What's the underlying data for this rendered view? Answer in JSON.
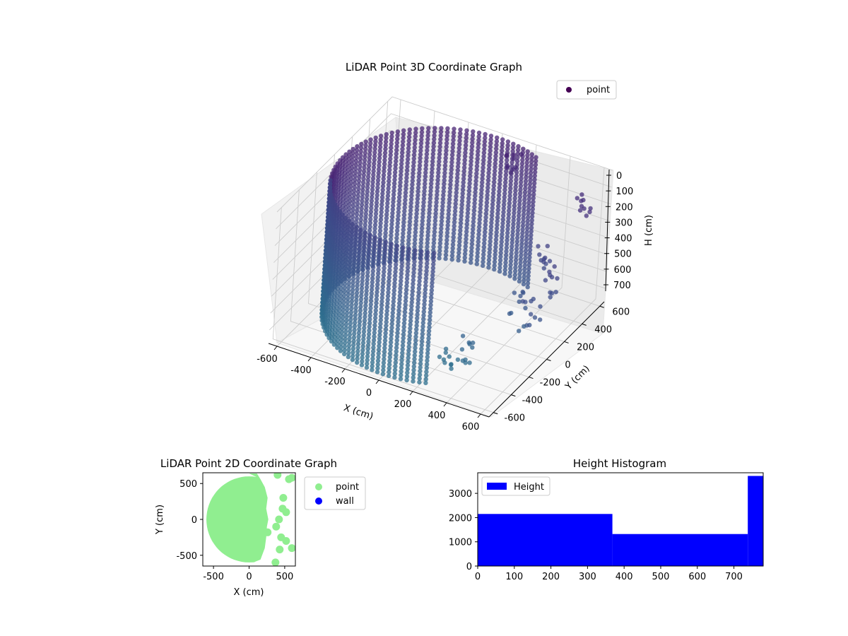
{
  "chart_data": [
    {
      "type": "scatter",
      "projection": "3d",
      "title": "LiDAR Point 3D Coordinate Graph",
      "xlabel": "X (cm)",
      "ylabel": "Y (cm)",
      "zlabel": "H (cm)",
      "xlim": [
        -650,
        650
      ],
      "ylim": [
        -650,
        650
      ],
      "zlim": [
        780,
        0
      ],
      "z_axis_inverted": true,
      "xticks": [
        -600,
        -400,
        -200,
        0,
        200,
        400,
        600
      ],
      "yticks": [
        -600,
        -400,
        -200,
        0,
        200,
        400,
        600
      ],
      "zticks": [
        0,
        100,
        200,
        300,
        400,
        500,
        600,
        700
      ],
      "grid": true,
      "legend": {
        "placement": "upper-right",
        "entries": [
          {
            "label": "point",
            "color": "#440154"
          }
        ]
      },
      "colormap": "viridis",
      "series": [
        {
          "name": "point",
          "description_of_points": "dense cylindrical wall of radius ~600 cm spanning roughly x in [-650, 300], heights 0-780 cm, plus scattered clusters near x 350-600",
          "wall_radius": 600,
          "wall_angle_range_deg": [
            65,
            295
          ],
          "height_range": [
            0,
            780
          ],
          "clusters": [
            {
              "x": 380,
              "y": 430,
              "h": [
                420,
                560
              ]
            },
            {
              "x": 520,
              "y": 300,
              "h": [
                380,
                620
              ]
            },
            {
              "x": 560,
              "y": 520,
              "h": [
                120,
                220
              ]
            },
            {
              "x": 450,
              "y": 200,
              "h": [
                600,
                740
              ]
            },
            {
              "x": 600,
              "y": -300,
              "h": [
                250,
                450
              ]
            },
            {
              "x": 380,
              "y": -420,
              "h": [
                500,
                700
              ]
            },
            {
              "x": 250,
              "y": -350,
              "h": [
                650,
                780
              ]
            },
            {
              "x": 150,
              "y": 520,
              "h": [
                0,
                120
              ]
            }
          ]
        }
      ]
    },
    {
      "type": "scatter",
      "title": "LiDAR Point 2D Coordinate Graph",
      "xlabel": "X (cm)",
      "ylabel": "Y (cm)",
      "xlim": [
        -650,
        650
      ],
      "ylim": [
        -650,
        650
      ],
      "xticks": [
        -500,
        0,
        500
      ],
      "yticks": [
        -500,
        0,
        500
      ],
      "legend": {
        "placement": "outside-right",
        "entries": [
          {
            "label": "point",
            "color": "#90ee90"
          },
          {
            "label": "wall",
            "color": "#0000ff"
          }
        ]
      },
      "series": [
        {
          "name": "point",
          "color": "#90ee90",
          "shape": "filled half-disc of radius ~600 centered at origin, x from -620 to ~250, plus small clusters at right",
          "clusters": [
            [
              400,
              620
            ],
            [
              560,
              560
            ],
            [
              600,
              580
            ],
            [
              480,
              300
            ],
            [
              470,
              150
            ],
            [
              520,
              100
            ],
            [
              420,
              0
            ],
            [
              380,
              -100
            ],
            [
              450,
              -250
            ],
            [
              520,
              -300
            ],
            [
              430,
              -420
            ],
            [
              600,
              -400
            ],
            [
              370,
              -600
            ],
            [
              260,
              -180
            ]
          ]
        },
        {
          "name": "wall",
          "color": "#0000ff",
          "points": []
        }
      ]
    },
    {
      "type": "bar",
      "subtype": "histogram",
      "title": "Height Histogram",
      "xlim": [
        0,
        780
      ],
      "ylim": [
        0,
        3850
      ],
      "xticks": [
        0,
        100,
        200,
        300,
        400,
        500,
        600,
        700
      ],
      "yticks": [
        0,
        1000,
        2000,
        3000
      ],
      "legend": {
        "placement": "upper-left",
        "entries": [
          {
            "label": "Height",
            "color": "#0000ff"
          }
        ]
      },
      "bins": [
        {
          "from": 0,
          "to": 368,
          "value": 2150
        },
        {
          "from": 368,
          "to": 738,
          "value": 1320
        },
        {
          "from": 738,
          "to": 780,
          "value": 3720
        }
      ],
      "color": "#0000ff"
    }
  ]
}
